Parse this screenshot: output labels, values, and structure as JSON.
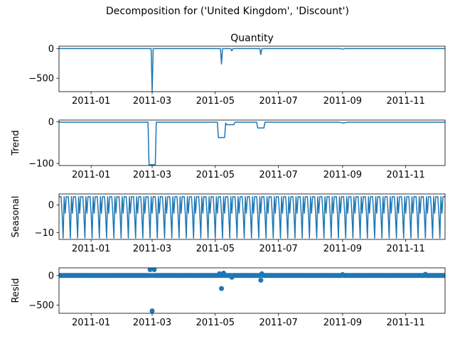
{
  "figure": {
    "suptitle": "Decomposition for ('United Kingdom', 'Discount')",
    "line_color": "#1f77b4"
  },
  "chart_data": [
    {
      "type": "line",
      "title": "Quantity",
      "ylabel": "",
      "x_ticks": [
        "2011-01",
        "2011-03",
        "2011-05",
        "2011-07",
        "2011-09",
        "2011-11"
      ],
      "y_ticks": [
        0,
        -500
      ],
      "xlim": [
        "2010-12-01",
        "2011-12-09"
      ],
      "ylim": [
        -725,
        40
      ],
      "grid": false,
      "series": [
        {
          "x": [
            "2010-12-01",
            "2011-02-28",
            "2011-03-01",
            "2011-03-02",
            "2011-05-06",
            "2011-05-07",
            "2011-05-08",
            "2011-05-16",
            "2011-05-17",
            "2011-05-18",
            "2011-06-13",
            "2011-06-14",
            "2011-06-15",
            "2011-08-30",
            "2011-09-01",
            "2011-09-03",
            "2011-12-09"
          ],
          "y": [
            -1,
            -1,
            -720,
            -1,
            -1,
            -260,
            -1,
            -1,
            -40,
            -1,
            -1,
            -100,
            -1,
            -1,
            -10,
            -1,
            -1
          ]
        }
      ]
    },
    {
      "type": "line",
      "title": "",
      "ylabel": "Trend",
      "x_ticks": [
        "2011-01",
        "2011-03",
        "2011-05",
        "2011-07",
        "2011-09",
        "2011-11"
      ],
      "y_ticks": [
        0,
        -100
      ],
      "xlim": [
        "2010-12-01",
        "2011-12-09"
      ],
      "ylim": [
        -105,
        4
      ],
      "grid": false,
      "series": [
        {
          "x": [
            "2010-12-01",
            "2011-02-25",
            "2011-02-26",
            "2011-03-04",
            "2011-03-05",
            "2011-05-03",
            "2011-05-04",
            "2011-05-10",
            "2011-05-11",
            "2011-05-12",
            "2011-05-19",
            "2011-05-20",
            "2011-06-10",
            "2011-06-11",
            "2011-06-17",
            "2011-06-18",
            "2011-08-28",
            "2011-09-02",
            "2011-09-06",
            "2011-12-09"
          ],
          "y": [
            -1,
            -1,
            -103,
            -103,
            -1,
            -1,
            -38,
            -38,
            -3,
            -7,
            -7,
            -1,
            -1,
            -15,
            -15,
            -1,
            -1,
            -3,
            -1,
            -1
          ]
        }
      ]
    },
    {
      "type": "line",
      "title": "",
      "ylabel": "Seasonal",
      "x_ticks": [
        "2011-01",
        "2011-03",
        "2011-05",
        "2011-07",
        "2011-09",
        "2011-11"
      ],
      "y_ticks": [
        0,
        -10
      ],
      "xlim": [
        "2010-12-01",
        "2011-12-09"
      ],
      "ylim": [
        -12.5,
        4
      ],
      "grid": false,
      "period_days": 7,
      "weekly_pattern": [
        3,
        3,
        3,
        -3,
        -12,
        3,
        -3
      ],
      "series": [
        {
          "name": "",
          "pattern_repeats_from": "2010-12-01"
        }
      ]
    },
    {
      "type": "scatter",
      "title": "",
      "ylabel": "Resid",
      "x_ticks": [
        "2011-01",
        "2011-03",
        "2011-05",
        "2011-07",
        "2011-09",
        "2011-11"
      ],
      "y_ticks": [
        0,
        -500
      ],
      "xlim": [
        "2010-12-01",
        "2011-12-09"
      ],
      "ylim": [
        -640,
        130
      ],
      "grid": false,
      "baseline_value": 0,
      "outliers": [
        {
          "x": "2011-02-27",
          "y": 100
        },
        {
          "x": "2011-03-01",
          "y": -600
        },
        {
          "x": "2011-03-03",
          "y": 100
        },
        {
          "x": "2011-05-05",
          "y": 30
        },
        {
          "x": "2011-05-07",
          "y": -220
        },
        {
          "x": "2011-05-09",
          "y": 40
        },
        {
          "x": "2011-05-17",
          "y": -30
        },
        {
          "x": "2011-06-14",
          "y": -80
        },
        {
          "x": "2011-06-15",
          "y": 30
        },
        {
          "x": "2011-09-01",
          "y": 15
        },
        {
          "x": "2011-11-20",
          "y": 20
        }
      ]
    }
  ]
}
